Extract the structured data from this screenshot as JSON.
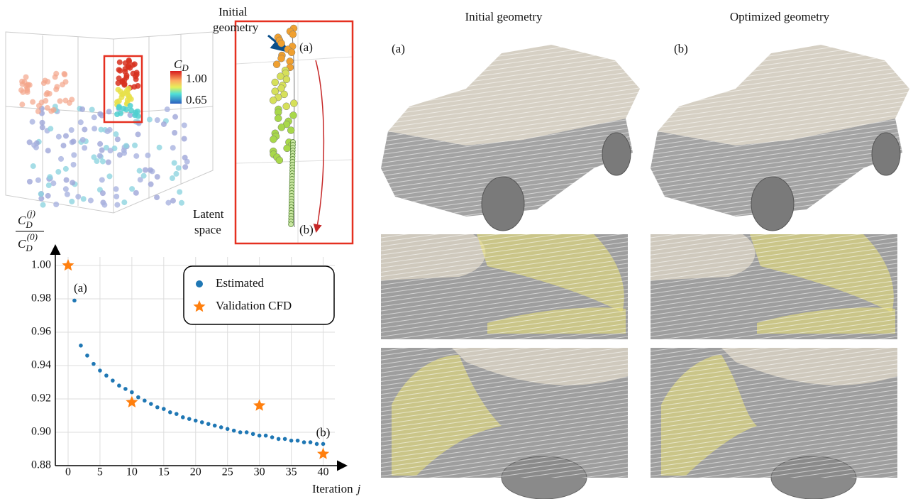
{
  "figure": {
    "scatter3d": {
      "inset_label": [
        "Initial",
        "geometry"
      ],
      "start_label": "(a)",
      "end_label": "(b)",
      "axis_label": [
        "Latent",
        "space"
      ],
      "colorbar": {
        "label": {
          "base": "C",
          "sub": "D"
        },
        "ticks": [
          {
            "value": 1.0,
            "label": "1.00"
          },
          {
            "value": 0.65,
            "label": "0.65"
          }
        ]
      }
    },
    "panels": {
      "titles": [
        "Initial geometry",
        "Optimized geometry"
      ],
      "labels": [
        "(a)",
        "(b)"
      ]
    }
  },
  "chart_data": {
    "type": "scatter",
    "ylabel": {
      "numerator": {
        "base": "C",
        "sub": "D",
        "sup": "(j)"
      },
      "denominator": {
        "base": "C",
        "sub": "D",
        "sup": "(0)"
      }
    },
    "xlabel": {
      "text": "Iteration",
      "var": "j"
    },
    "annotations": [
      "(a)",
      "(b)"
    ],
    "xlim": [
      -2,
      43.5
    ],
    "ylim": [
      0.88,
      1.0115
    ],
    "xticks": [
      0,
      5,
      10,
      15,
      20,
      25,
      30,
      35,
      40
    ],
    "yticks": [
      0.88,
      {
        "value": 0.9,
        "label": "0.90"
      },
      0.92,
      0.94,
      0.96,
      0.98,
      {
        "value": 1,
        "label": "1.00"
      }
    ],
    "grid": true,
    "legend": "upper right",
    "series": [
      {
        "name": "Estimated",
        "color": "#1f77b4",
        "marker": "circle",
        "x": [
          1,
          2,
          3,
          4,
          5,
          6,
          7,
          8,
          9,
          10,
          11,
          12,
          13,
          14,
          15,
          16,
          17,
          18,
          19,
          20,
          21,
          22,
          23,
          24,
          25,
          26,
          27,
          28,
          29,
          30,
          31,
          32,
          33,
          34,
          35,
          36,
          37,
          38,
          39,
          40
        ],
        "values": [
          0.979,
          0.952,
          0.946,
          0.941,
          0.937,
          0.934,
          0.931,
          0.928,
          0.926,
          0.924,
          0.921,
          0.919,
          0.917,
          0.915,
          0.914,
          0.912,
          0.911,
          0.909,
          0.908,
          0.907,
          0.906,
          0.905,
          0.904,
          0.903,
          0.902,
          0.901,
          0.9,
          0.9,
          0.899,
          0.898,
          0.898,
          0.897,
          0.896,
          0.896,
          0.895,
          0.895,
          0.894,
          0.894,
          0.893,
          0.893
        ]
      },
      {
        "name": "Validation CFD",
        "color": "#ff7f0e",
        "marker": "star",
        "x": [
          0,
          10,
          30,
          40
        ],
        "values": [
          1.0,
          0.918,
          0.916,
          0.887
        ]
      }
    ]
  }
}
